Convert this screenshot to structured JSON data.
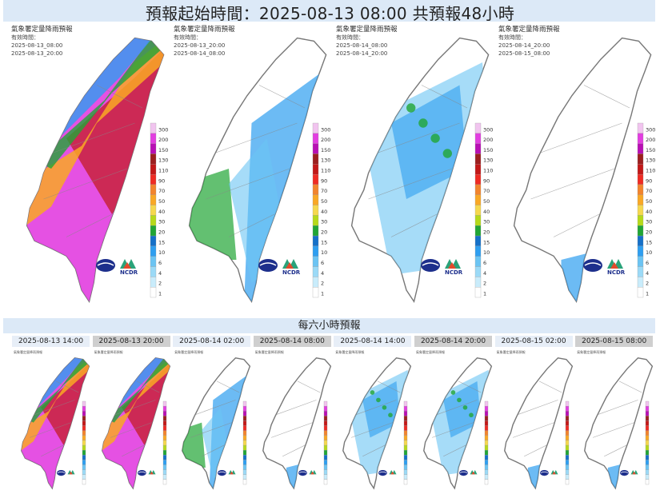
{
  "header": {
    "title": "預報起始時間：2025-08-13 08:00  共預報48小時"
  },
  "map_header": {
    "product": "氣象署定量降雨預報",
    "valid_label": "有效時間："
  },
  "big_maps": [
    {
      "from": "2025-08-13_08:00",
      "to": "2025-08-13_20:00",
      "intensity": "heavy"
    },
    {
      "from": "2025-08-13_20:00",
      "to": "2025-08-14_08:00",
      "intensity": "moderate"
    },
    {
      "from": "2025-08-14_08:00",
      "to": "2025-08-14_20:00",
      "intensity": "scattered"
    },
    {
      "from": "2025-08-14_20:00",
      "to": "2025-08-15_08:00",
      "intensity": "light"
    }
  ],
  "legend": {
    "values": [
      "300",
      "200",
      "150",
      "130",
      "110",
      "90",
      "70",
      "50",
      "40",
      "30",
      "20",
      "15",
      "10",
      "6",
      "4",
      "2",
      "1"
    ],
    "colors": [
      "#f1c4ef",
      "#e23ee0",
      "#b80fb4",
      "#9c1f1f",
      "#c21818",
      "#ef2b23",
      "#f2842d",
      "#f9a825",
      "#f5d84e",
      "#b6d91a",
      "#21a535",
      "#1570c8",
      "#2e9ef0",
      "#6bc4f3",
      "#9bdaf7",
      "#c9ecfb",
      "#ffffff"
    ]
  },
  "logos": {
    "ncdr": "NCDR"
  },
  "section": {
    "title": "每六小時預報"
  },
  "six_hour": [
    {
      "label": "2025-08-13 14:00",
      "tone": "light",
      "intensity": "heavy"
    },
    {
      "label": "2025-08-13 20:00",
      "tone": "dark",
      "intensity": "heavy"
    },
    {
      "label": "2025-08-14 02:00",
      "tone": "light",
      "intensity": "moderate"
    },
    {
      "label": "2025-08-14 08:00",
      "tone": "dark",
      "intensity": "light"
    },
    {
      "label": "2025-08-14 14:00",
      "tone": "light",
      "intensity": "scattered"
    },
    {
      "label": "2025-08-14 20:00",
      "tone": "dark",
      "intensity": "scattered"
    },
    {
      "label": "2025-08-15 02:00",
      "tone": "light",
      "intensity": "light"
    },
    {
      "label": "2025-08-15 08:00",
      "tone": "dark",
      "intensity": "light"
    }
  ]
}
